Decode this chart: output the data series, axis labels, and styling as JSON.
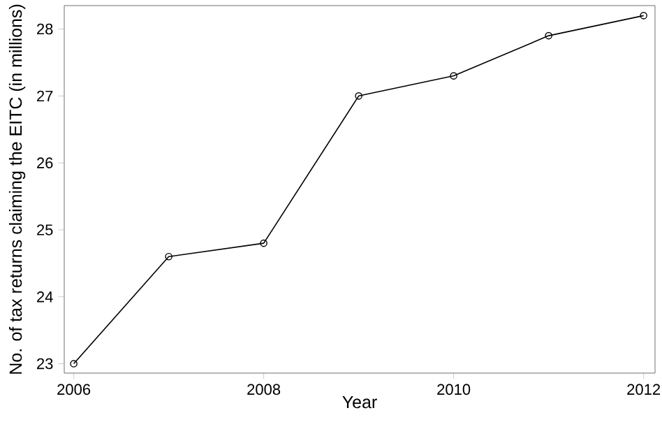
{
  "chart_data": {
    "type": "line",
    "xlabel": "Year",
    "ylabel": "No. of tax returns claiming the EITC (in millions)",
    "x": [
      2006,
      2007,
      2008,
      2009,
      2010,
      2011,
      2012
    ],
    "series": [
      {
        "color": "#000000",
        "values": [
          23.0,
          24.6,
          24.8,
          27.0,
          27.3,
          27.9,
          28.2
        ]
      }
    ],
    "xlim": [
      2005.9,
      2012.12
    ],
    "ylim": [
      22.86,
      28.35
    ],
    "xticks": [
      2006,
      2008,
      2010,
      2012
    ],
    "yticks": [
      23,
      24,
      25,
      26,
      27,
      28
    ],
    "marker": "circle",
    "line_style": "solid",
    "grid": false
  }
}
